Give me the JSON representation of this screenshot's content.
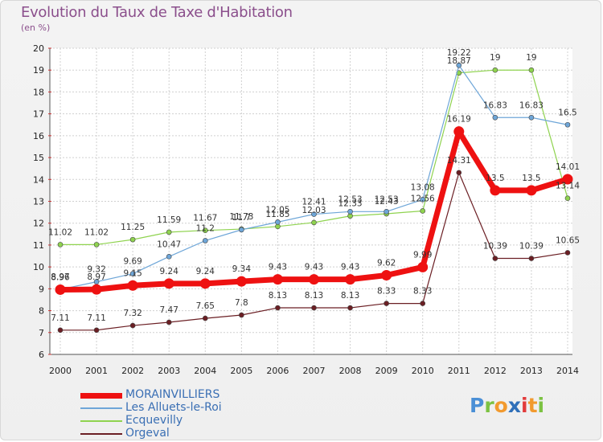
{
  "title": "Evolution du Taux de Taxe d'Habitation",
  "subtitle": "(en %)",
  "brand": {
    "text": "Proxiti",
    "letters": [
      {
        "ch": "P",
        "color": "#4a8fd6"
      },
      {
        "ch": "r",
        "color": "#7cc242"
      },
      {
        "ch": "o",
        "color": "#f29a2e"
      },
      {
        "ch": "x",
        "color": "#2f6fb9"
      },
      {
        "ch": "i",
        "color": "#e23b3b"
      },
      {
        "ch": "t",
        "color": "#f29a2e"
      },
      {
        "ch": "i",
        "color": "#7cc242"
      }
    ]
  },
  "chart_data": {
    "type": "line",
    "title": "Evolution du Taux de Taxe d'Habitation",
    "ylabel": "(en %)",
    "xlabel": "",
    "ylim": [
      6,
      20
    ],
    "yticks": [
      6,
      7,
      8,
      9,
      10,
      11,
      12,
      13,
      14,
      15,
      16,
      17,
      18,
      19,
      20
    ],
    "grid": true,
    "legend_position": "bottom-left",
    "x": [
      "2000",
      "2001",
      "2002",
      "2003",
      "2004",
      "2005",
      "2006",
      "2007",
      "2008",
      "2009",
      "2010",
      "2011",
      "2012",
      "2013",
      "2014"
    ],
    "series": [
      {
        "name": "Orgeval",
        "color": "#6b1f24",
        "width": 1.2,
        "values": [
          7.11,
          7.11,
          7.32,
          7.47,
          7.65,
          7.8,
          8.13,
          8.13,
          8.13,
          8.33,
          8.33,
          14.31,
          10.39,
          10.39,
          10.65
        ],
        "labels": [
          "7.11",
          "7.11",
          "7.32",
          "7.47",
          "7.65",
          "7.8",
          "8.13",
          "8.13",
          "8.13",
          "8.33",
          "8.33",
          "14.31",
          "10.39",
          "10.39",
          "10.65"
        ]
      },
      {
        "name": "Ecquevilly",
        "color": "#8fd34f",
        "width": 1.2,
        "values": [
          11.02,
          11.02,
          11.25,
          11.59,
          11.67,
          11.73,
          11.85,
          12.03,
          12.33,
          12.43,
          12.56,
          18.87,
          19,
          19,
          13.14
        ],
        "labels": [
          "11.02",
          "11.02",
          "11.25",
          "11.59",
          "11.67",
          "11.73",
          "11.85",
          "12.03",
          "12.33",
          "12.43",
          "12.56",
          "18.87",
          "19",
          "19",
          "13.14"
        ]
      },
      {
        "name": "Les Alluets-le-Roi",
        "color": "#6ea6d8",
        "width": 1.2,
        "values": [
          8.97,
          9.32,
          9.69,
          10.47,
          11.2,
          11.7,
          12.05,
          12.41,
          12.53,
          12.53,
          13.08,
          19.22,
          16.83,
          16.83,
          16.5
        ],
        "labels": [
          "8.97",
          "9.32",
          "9.69",
          "10.47",
          "11.2",
          "11.7",
          "12.05",
          "12.41",
          "12.53",
          "12.53",
          "13.08",
          "19.22",
          "16.83",
          "16.83",
          "16.5"
        ]
      },
      {
        "name": "MORAINVILLIERS",
        "color": "#ee1111",
        "width": 7,
        "values": [
          8.96,
          8.97,
          9.15,
          9.24,
          9.24,
          9.34,
          9.43,
          9.43,
          9.43,
          9.62,
          9.99,
          16.19,
          13.5,
          13.5,
          14.01
        ],
        "labels": [
          "8.96",
          "8.97",
          "9.15",
          "9.24",
          "9.24",
          "9.34",
          "9.43",
          "9.43",
          "9.43",
          "9.62",
          "9.99",
          "16.19",
          "13.5",
          "13.5",
          "14.01"
        ]
      }
    ]
  },
  "legend": {
    "items": [
      {
        "label": "MORAINVILLIERS",
        "color": "#ee1111",
        "thickness": 7
      },
      {
        "label": "Les Alluets-le-Roi",
        "color": "#6ea6d8",
        "thickness": 2
      },
      {
        "label": "Ecquevilly",
        "color": "#8fd34f",
        "thickness": 2
      },
      {
        "label": "Orgeval",
        "color": "#6b1f24",
        "thickness": 2
      }
    ]
  }
}
